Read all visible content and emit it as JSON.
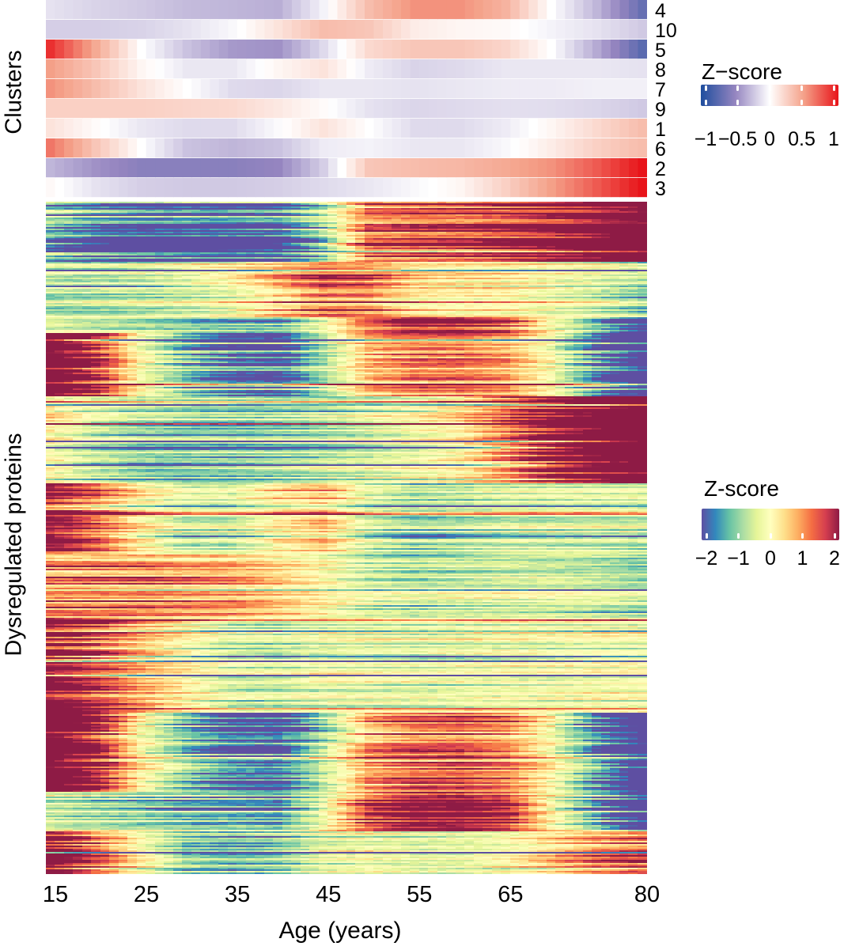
{
  "chart_data": [
    {
      "type": "heatmap",
      "name": "cluster-profiles",
      "ylabel": "Clusters",
      "x_ages": [
        15,
        80
      ],
      "profile_ages": [
        15,
        20,
        25,
        30,
        35,
        40,
        45,
        50,
        55,
        60,
        65,
        70,
        75,
        80
      ],
      "rows": [
        {
          "cluster": "4",
          "values": [
            -0.12,
            -0.18,
            -0.22,
            -0.28,
            -0.3,
            -0.33,
            -0.05,
            0.35,
            0.55,
            0.55,
            0.4,
            0.0,
            -0.3,
            -0.7
          ]
        },
        {
          "cluster": "10",
          "values": [
            -0.2,
            -0.2,
            -0.18,
            -0.12,
            -0.03,
            0.15,
            0.35,
            0.3,
            0.1,
            0.05,
            0.03,
            -0.05,
            -0.12,
            -0.22
          ]
        },
        {
          "cluster": "5",
          "values": [
            0.9,
            0.45,
            0.0,
            -0.25,
            -0.42,
            -0.45,
            -0.15,
            0.2,
            0.3,
            0.3,
            0.22,
            0.0,
            -0.35,
            -0.75
          ]
        },
        {
          "cluster": "8",
          "values": [
            0.5,
            0.3,
            0.05,
            -0.1,
            -0.1,
            0.05,
            0.15,
            -0.08,
            -0.18,
            -0.15,
            -0.1,
            -0.1,
            -0.1,
            -0.12
          ]
        },
        {
          "cluster": "7",
          "values": [
            0.55,
            0.35,
            0.15,
            0.0,
            -0.15,
            -0.17,
            -0.1,
            -0.1,
            -0.12,
            -0.1,
            -0.08,
            -0.08,
            -0.06,
            -0.06
          ]
        },
        {
          "cluster": "9",
          "values": [
            0.25,
            0.25,
            0.25,
            0.22,
            0.2,
            0.12,
            0.02,
            -0.12,
            -0.17,
            -0.15,
            -0.13,
            -0.14,
            -0.17,
            -0.22
          ]
        },
        {
          "cluster": "1",
          "values": [
            0.15,
            0.02,
            -0.1,
            -0.15,
            -0.15,
            -0.02,
            0.15,
            0.0,
            -0.15,
            -0.15,
            -0.08,
            0.05,
            0.2,
            0.35
          ]
        },
        {
          "cluster": "6",
          "values": [
            0.65,
            0.3,
            0.0,
            -0.25,
            -0.3,
            -0.25,
            -0.08,
            -0.05,
            -0.1,
            -0.1,
            -0.03,
            0.1,
            0.25,
            0.35
          ]
        },
        {
          "cluster": "2",
          "values": [
            -0.3,
            -0.45,
            -0.55,
            -0.55,
            -0.55,
            -0.5,
            -0.2,
            0.3,
            0.35,
            0.38,
            0.45,
            0.55,
            0.75,
            1.0
          ]
        },
        {
          "cluster": "3",
          "values": [
            0.03,
            -0.12,
            -0.2,
            -0.22,
            -0.22,
            -0.2,
            -0.15,
            -0.1,
            -0.03,
            0.05,
            0.25,
            0.5,
            0.75,
            1.0
          ]
        }
      ],
      "legend": {
        "title": "Z−score",
        "range": [
          -1,
          1
        ],
        "ticks": [
          "−1",
          "−0.5",
          "0",
          "0.5",
          "1"
        ],
        "tick_values": [
          -1,
          -0.5,
          0,
          0.5,
          1
        ],
        "colors": [
          "#1F4E9E",
          "#9585C0",
          "#FFFFFF",
          "#F4A088",
          "#E8141A"
        ],
        "placement": "right-top"
      }
    },
    {
      "type": "heatmap",
      "name": "dysregulated-proteins",
      "ylabel": "Dysregulated proteins",
      "xlabel": "Age (years)",
      "xticks": [
        "15",
        "25",
        "35",
        "45",
        "55",
        "65",
        "80"
      ],
      "xtick_values": [
        15,
        25,
        35,
        45,
        55,
        65,
        80
      ],
      "row_blocks": [
        {
          "cluster": "2",
          "rows": 38
        },
        {
          "cluster": "10",
          "rows": 35
        },
        {
          "cluster": "4",
          "rows": 10
        },
        {
          "cluster": "5",
          "rows": 40
        },
        {
          "cluster": "3",
          "rows": 55
        },
        {
          "cluster": "8",
          "rows": 45
        },
        {
          "cluster": "9",
          "rows": 40
        },
        {
          "cluster": "7",
          "rows": 60
        },
        {
          "cluster": "5",
          "rows": 50
        },
        {
          "cluster": "4",
          "rows": 25
        },
        {
          "cluster": "6",
          "rows": 27
        }
      ],
      "legend": {
        "title": "Z-score",
        "range": [
          -2,
          2
        ],
        "ticks": [
          "−2",
          "−1",
          "0",
          "1",
          "2"
        ],
        "tick_values": [
          -2,
          -1,
          0,
          1,
          2
        ],
        "colors": [
          "#5E4FA2",
          "#3288BD",
          "#66C2A5",
          "#ABDDA4",
          "#E6F598",
          "#FFFFBF",
          "#FEE08B",
          "#FDAE61",
          "#F46D43",
          "#D53E4F",
          "#8E1B45"
        ],
        "placement": "right-middle"
      }
    }
  ]
}
